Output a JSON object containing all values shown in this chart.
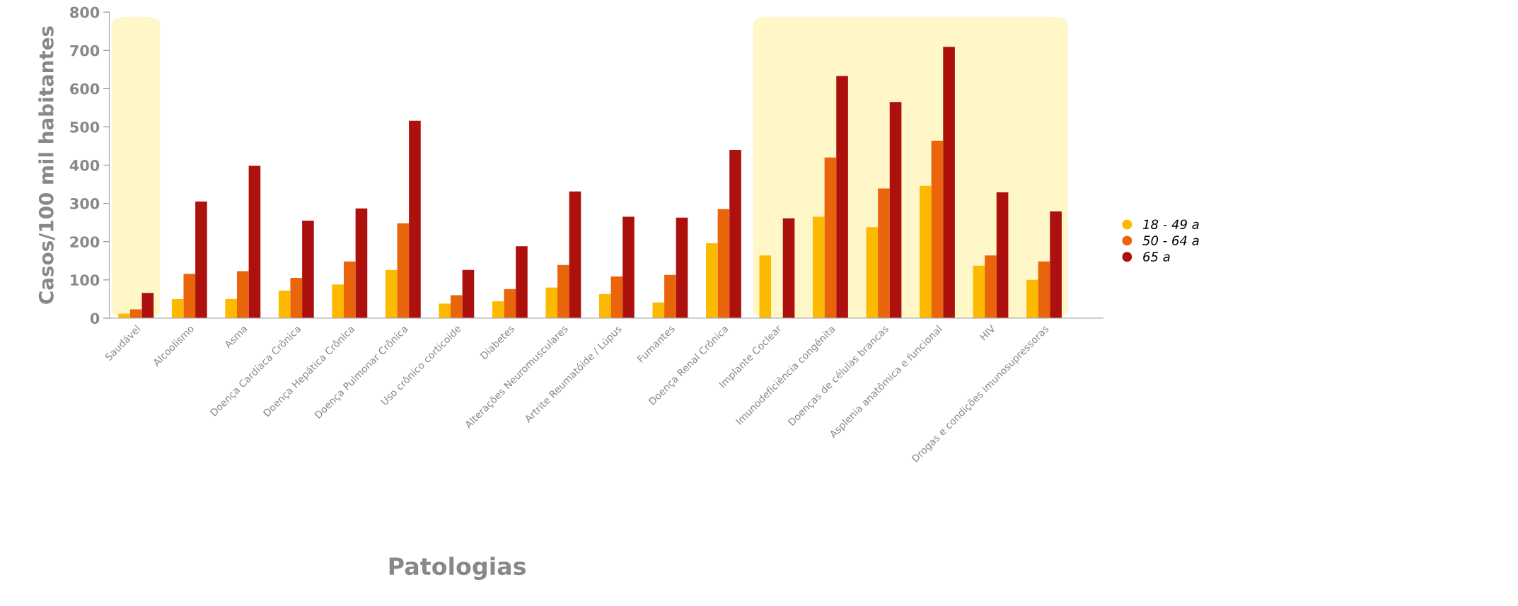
{
  "chart_data": {
    "type": "bar",
    "xlabel": "Patologias",
    "ylabel": "Casos/100 mil habitantes",
    "categories": [
      "Saudável",
      "Alcoolismo",
      "Asma",
      "Doença Cardíaca Crônica",
      "Doença Hepática Crônica",
      "Doença Pulmonar Crônica",
      "Uso crônico corticoide",
      "Diabetes",
      "Alterações Neuromusculares",
      "Artrite Reumatóide / Lúpus",
      "Fumantes",
      "Doença Renal Crônica",
      "Implante Coclear",
      "Imunodeficiência congênita",
      "Doenças de células brancas",
      "Asplenia anatômica e funcional",
      "HIV",
      "Drogas e condições imunosupressoras"
    ],
    "series": [
      {
        "name": "18 - 49 a",
        "color": "#fbb900",
        "values": [
          12,
          50,
          50,
          72,
          88,
          126,
          38,
          44,
          80,
          63,
          41,
          196,
          164,
          265,
          238,
          346,
          137,
          100
        ]
      },
      {
        "name": "50 - 64 a",
        "color": "#e9640a",
        "values": [
          23,
          116,
          123,
          105,
          148,
          248,
          60,
          76,
          139,
          109,
          113,
          285,
          null,
          420,
          339,
          464,
          164,
          148
        ]
      },
      {
        "name": "65 a",
        "color": "#ac110d",
        "values": [
          66,
          305,
          398,
          255,
          287,
          516,
          126,
          188,
          331,
          265,
          263,
          440,
          261,
          633,
          565,
          709,
          329,
          279
        ]
      }
    ],
    "ylim": [
      0,
      800
    ],
    "yticks": [
      0,
      100,
      200,
      300,
      400,
      500,
      600,
      700,
      800
    ],
    "grid": false,
    "legend": "right",
    "bands": [
      {
        "axis": "x",
        "from": "Saudável",
        "to": "Saudável",
        "color": "#fff7c8"
      },
      {
        "axis": "x",
        "from": "Implante Coclear",
        "to": "Drogas e condições imunosupressoras",
        "color": "#fff7c8"
      }
    ]
  }
}
